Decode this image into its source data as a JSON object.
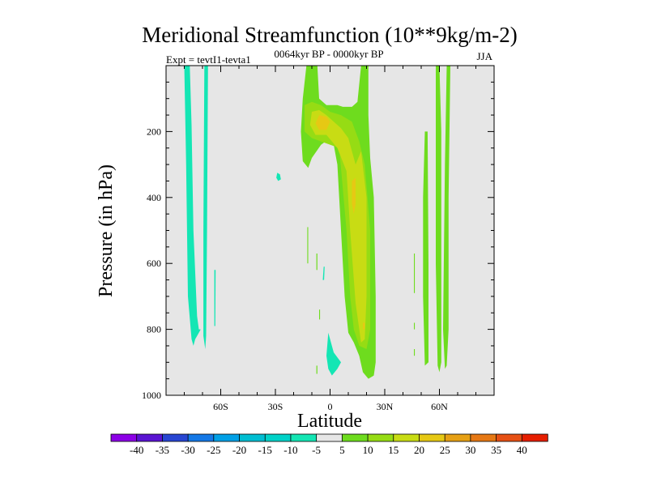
{
  "chart_data": {
    "type": "contour",
    "title": "Meridional Streamfunction (10**9kg/m-2)",
    "experiment_label": "Expt = tevtI1-tevta1",
    "period_label": "0064kyr BP - 0000kyr BP",
    "season_label": "JJA",
    "xlabel": "Latitude",
    "ylabel": "Pressure (in hPa)",
    "xlim": [
      -90,
      90
    ],
    "ylim": [
      0,
      1000
    ],
    "y_inverted": true,
    "x_ticks": [
      {
        "value": -60,
        "label": "60S"
      },
      {
        "value": -30,
        "label": "30S"
      },
      {
        "value": 0,
        "label": "0"
      },
      {
        "value": 30,
        "label": "30N"
      },
      {
        "value": 60,
        "label": "60N"
      }
    ],
    "y_ticks": [
      {
        "value": 200,
        "label": "200"
      },
      {
        "value": 400,
        "label": "400"
      },
      {
        "value": 600,
        "label": "600"
      },
      {
        "value": 800,
        "label": "800"
      },
      {
        "value": 1000,
        "label": "1000"
      }
    ],
    "background_color": "#e6e6e6",
    "colorbar": {
      "levels": [
        "-40",
        "-35",
        "-30",
        "-25",
        "-20",
        "-15",
        "-10",
        "-5",
        "5",
        "10",
        "15",
        "20",
        "25",
        "30",
        "35",
        "40"
      ],
      "colors": [
        "#8c00e6",
        "#5a14d2",
        "#2846d2",
        "#1478e6",
        "#00a0e6",
        "#00bed2",
        "#00d2c8",
        "#14e6b4",
        "#e6e6e6",
        "#6edc1e",
        "#96dc14",
        "#c8dc14",
        "#e6c814",
        "#e6a014",
        "#e67814",
        "#e65014",
        "#e61e00"
      ]
    },
    "regions": [
      {
        "level": -10,
        "color": "#14e6b4",
        "points": [
          [
            -80,
            0
          ],
          [
            -77,
            0
          ],
          [
            -76,
            180
          ],
          [
            -75,
            500
          ],
          [
            -73,
            760
          ],
          [
            -72,
            800
          ],
          [
            -71,
            800
          ],
          [
            -73,
            820
          ],
          [
            -74,
            830
          ],
          [
            -75,
            850
          ],
          [
            -76,
            830
          ],
          [
            -78,
            700
          ],
          [
            -79,
            300
          ]
        ]
      },
      {
        "level": -10,
        "color": "#14e6b4",
        "points": [
          [
            -69,
            0
          ],
          [
            -67,
            0
          ],
          [
            -67.5,
            500
          ],
          [
            -68,
            820
          ],
          [
            -68.5,
            860
          ],
          [
            -69.5,
            820
          ],
          [
            -69.5,
            500
          ]
        ]
      },
      {
        "level": -10,
        "color": "#14e6b4",
        "points": [
          [
            -63.5,
            620
          ],
          [
            -62.8,
            620
          ],
          [
            -63,
            790
          ],
          [
            -63.5,
            790
          ]
        ]
      },
      {
        "level": -10,
        "color": "#14e6b4",
        "points": [
          [
            -29,
            325
          ],
          [
            -27.5,
            330
          ],
          [
            -27,
            345
          ],
          [
            -28.5,
            350
          ],
          [
            -29.5,
            340
          ]
        ]
      },
      {
        "level": -10,
        "color": "#14e6b4",
        "points": [
          [
            -3.5,
            610
          ],
          [
            -3,
            610
          ],
          [
            -3.3,
            650
          ],
          [
            -4,
            650
          ]
        ]
      },
      {
        "level": -10,
        "color": "#14e6b4",
        "points": [
          [
            -1,
            810
          ],
          [
            2,
            870
          ],
          [
            6,
            900
          ],
          [
            4,
            920
          ],
          [
            1,
            940
          ],
          [
            -1,
            920
          ],
          [
            -2,
            880
          ]
        ]
      },
      {
        "level": 5,
        "color": "#6edc1e",
        "points": [
          [
            -12,
            0
          ],
          [
            -7,
            0
          ],
          [
            -6,
            100
          ],
          [
            -2,
            120
          ],
          [
            4,
            120
          ],
          [
            7,
            125
          ],
          [
            12,
            125
          ],
          [
            15,
            110
          ],
          [
            17,
            0
          ],
          [
            21,
            0
          ],
          [
            21,
            150
          ],
          [
            22,
            280
          ],
          [
            24,
            400
          ],
          [
            25,
            700
          ],
          [
            25,
            900
          ],
          [
            24,
            940
          ],
          [
            21,
            950
          ],
          [
            18,
            930
          ],
          [
            16,
            880
          ],
          [
            13,
            840
          ],
          [
            10,
            810
          ],
          [
            8,
            700
          ],
          [
            6,
            500
          ],
          [
            4,
            300
          ],
          [
            2,
            240
          ],
          [
            0,
            220
          ],
          [
            -5,
            240
          ],
          [
            -10,
            280
          ],
          [
            -12,
            310
          ],
          [
            -15,
            290
          ],
          [
            -16,
            200
          ],
          [
            -15,
            100
          ],
          [
            -13,
            0
          ]
        ]
      },
      {
        "level": 5,
        "color": "#6edc1e",
        "points": [
          [
            -12.5,
            490
          ],
          [
            -12,
            490
          ],
          [
            -12,
            600
          ],
          [
            -12.5,
            600
          ]
        ]
      },
      {
        "level": 5,
        "color": "#6edc1e",
        "points": [
          [
            -7.5,
            570
          ],
          [
            -7,
            570
          ],
          [
            -7,
            620
          ],
          [
            -7.5,
            620
          ]
        ]
      },
      {
        "level": 5,
        "color": "#6edc1e",
        "points": [
          [
            -6,
            740
          ],
          [
            -5.5,
            740
          ],
          [
            -5.5,
            770
          ],
          [
            -6,
            770
          ]
        ]
      },
      {
        "level": 5,
        "color": "#6edc1e",
        "points": [
          [
            -7.5,
            910
          ],
          [
            -7,
            910
          ],
          [
            -7,
            935
          ],
          [
            -7.5,
            935
          ]
        ]
      },
      {
        "level": 5,
        "color": "#6edc1e",
        "points": [
          [
            58,
            0
          ],
          [
            60,
            0
          ],
          [
            61,
            200
          ],
          [
            61,
            500
          ],
          [
            61,
            900
          ],
          [
            60,
            930
          ],
          [
            59,
            910
          ],
          [
            58,
            600
          ]
        ]
      },
      {
        "level": 5,
        "color": "#6edc1e",
        "points": [
          [
            64,
            0
          ],
          [
            66,
            0
          ],
          [
            65,
            400
          ],
          [
            65,
            800
          ],
          [
            64,
            910
          ],
          [
            63,
            920
          ],
          [
            62,
            800
          ],
          [
            63,
            300
          ]
        ]
      },
      {
        "level": 5,
        "color": "#6edc1e",
        "points": [
          [
            52,
            200
          ],
          [
            53.5,
            200
          ],
          [
            54,
            600
          ],
          [
            54,
            900
          ],
          [
            52,
            910
          ],
          [
            51,
            700
          ],
          [
            51,
            400
          ]
        ]
      },
      {
        "level": 5,
        "color": "#6edc1e",
        "points": [
          [
            46,
            570
          ],
          [
            46.5,
            570
          ],
          [
            46.5,
            690
          ],
          [
            46,
            690
          ]
        ]
      },
      {
        "level": 5,
        "color": "#6edc1e",
        "points": [
          [
            46,
            780
          ],
          [
            46.5,
            780
          ],
          [
            46.5,
            800
          ],
          [
            46,
            800
          ]
        ]
      },
      {
        "level": 5,
        "color": "#6edc1e",
        "points": [
          [
            46,
            860
          ],
          [
            46.5,
            860
          ],
          [
            46.5,
            880
          ],
          [
            46,
            880
          ]
        ]
      },
      {
        "level": 5,
        "color": "#6edc1e",
        "points": [
          [
            3,
            130
          ],
          [
            8,
            130
          ],
          [
            6,
            170
          ],
          [
            3,
            170
          ]
        ]
      },
      {
        "level": 10,
        "color": "#96dc14",
        "points": [
          [
            -14,
            120
          ],
          [
            -10,
            110
          ],
          [
            -5,
            120
          ],
          [
            0,
            140
          ],
          [
            6,
            150
          ],
          [
            12,
            170
          ],
          [
            16,
            230
          ],
          [
            19,
            300
          ],
          [
            22,
            500
          ],
          [
            22,
            800
          ],
          [
            20,
            860
          ],
          [
            16,
            850
          ],
          [
            13,
            800
          ],
          [
            11,
            700
          ],
          [
            9,
            500
          ],
          [
            5,
            250
          ],
          [
            -5,
            230
          ],
          [
            -10,
            220
          ],
          [
            -14,
            200
          ]
        ]
      },
      {
        "level": 15,
        "color": "#c8dc14",
        "points": [
          [
            -10,
            140
          ],
          [
            -6,
            135
          ],
          [
            -2,
            150
          ],
          [
            2,
            170
          ],
          [
            6,
            190
          ],
          [
            10,
            220
          ],
          [
            14,
            300
          ],
          [
            17,
            260
          ],
          [
            20,
            400
          ],
          [
            20,
            700
          ],
          [
            19,
            830
          ],
          [
            17,
            840
          ],
          [
            14,
            720
          ],
          [
            11,
            500
          ],
          [
            9,
            320
          ],
          [
            4,
            250
          ],
          [
            -2,
            210
          ],
          [
            -8,
            210
          ],
          [
            -11,
            180
          ]
        ]
      },
      {
        "level": 20,
        "color": "#e6c814",
        "points": [
          [
            -6,
            150
          ],
          [
            -2,
            155
          ],
          [
            0,
            170
          ],
          [
            -2,
            195
          ],
          [
            -6,
            195
          ],
          [
            -8,
            175
          ]
        ]
      },
      {
        "level": 20,
        "color": "#e6c814",
        "points": [
          [
            12,
            350
          ],
          [
            14,
            340
          ],
          [
            14,
            420
          ],
          [
            13,
            450
          ],
          [
            12,
            420
          ]
        ]
      },
      {
        "level": 20,
        "color": "#e6c814",
        "points": [
          [
            18,
            780
          ],
          [
            19,
            780
          ],
          [
            19,
            800
          ],
          [
            18,
            800
          ]
        ]
      }
    ]
  }
}
